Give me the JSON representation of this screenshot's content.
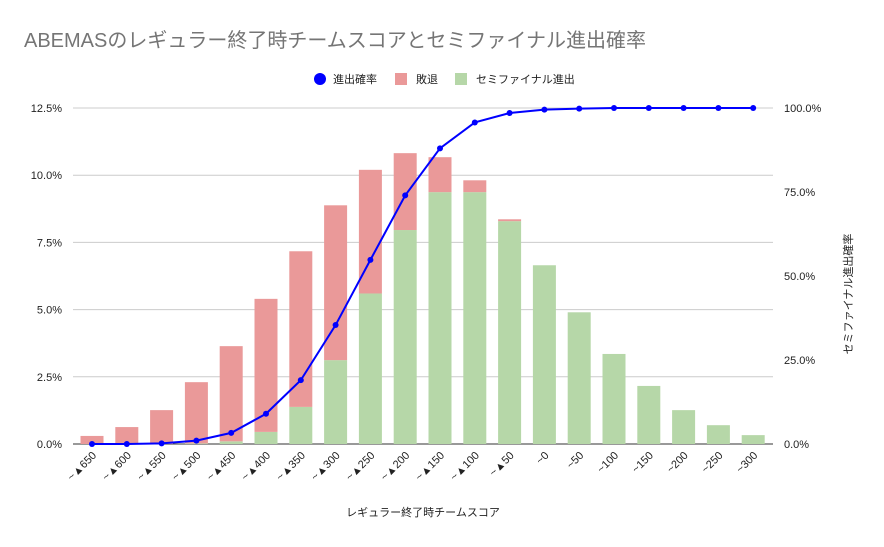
{
  "chart_data": {
    "type": "bar",
    "stacked": true,
    "title": "ABEMASのレギュラー終了時チームスコアとセミファイナル進出確率",
    "xlabel": "レギュラー終了時チームスコア",
    "ylabel": "",
    "y2label": "セミファイナル進出確率",
    "ylim": [
      0,
      12.5
    ],
    "y2lim": [
      0,
      100
    ],
    "yticks": [
      "0.0%",
      "2.5%",
      "5.0%",
      "7.5%",
      "10.0%",
      "12.5%"
    ],
    "y2ticks": [
      "0.0%",
      "25.0%",
      "50.0%",
      "75.0%",
      "100.0%"
    ],
    "legend_position": "top",
    "grid": true,
    "categories": [
      "~▲650",
      "~▲600",
      "~▲550",
      "~▲500",
      "~▲450",
      "~▲400",
      "~▲350",
      "~▲300",
      "~▲250",
      "~▲200",
      "~▲150",
      "~▲100",
      "~▲50",
      "~0",
      "~50",
      "~100",
      "~150",
      "~200",
      "~250",
      "~300"
    ],
    "series": [
      {
        "name": "進出確率",
        "type": "line",
        "axis": "right",
        "color": "#0000ff",
        "values": [
          0,
          0,
          0.2,
          1.0,
          3.3,
          9.0,
          19.0,
          35.4,
          54.8,
          74.0,
          88.0,
          95.7,
          98.5,
          99.5,
          99.8,
          100,
          100,
          100,
          100,
          100
        ]
      },
      {
        "name": "敗退",
        "type": "bar",
        "axis": "left",
        "color": "#ea9999",
        "values": [
          0.3,
          0.63,
          1.26,
          2.28,
          3.54,
          4.95,
          5.79,
          5.76,
          4.6,
          2.86,
          1.3,
          0.44,
          0.07,
          0,
          0,
          0,
          0,
          0,
          0,
          0
        ]
      },
      {
        "name": "セミファイナル進出",
        "type": "bar",
        "axis": "left",
        "color": "#b6d7a8",
        "values": [
          0,
          0,
          0,
          0.02,
          0.1,
          0.45,
          1.38,
          3.12,
          5.6,
          7.96,
          9.37,
          9.37,
          8.29,
          6.65,
          4.9,
          3.35,
          2.16,
          1.26,
          0.7,
          0.33
        ]
      }
    ]
  }
}
